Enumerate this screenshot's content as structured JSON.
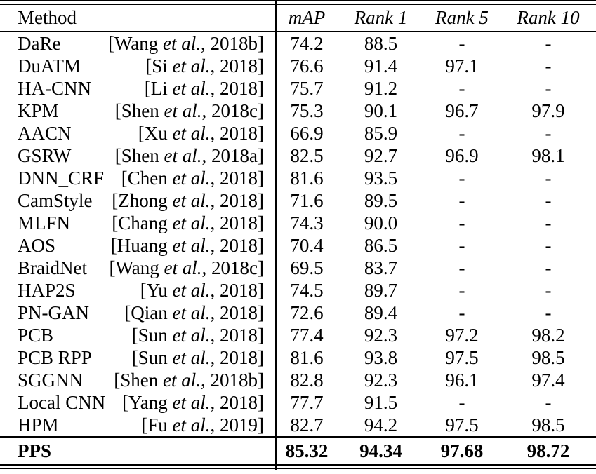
{
  "colors": {
    "text": "#000000",
    "background": "#ffffff",
    "rule": "#000000"
  },
  "table": {
    "header": {
      "method_label": "Method",
      "columns": [
        "mAP",
        "Rank 1",
        "Rank 5",
        "Rank 10"
      ]
    },
    "rows": [
      {
        "method": "DaRe",
        "cite": "[Wang et al., 2018b]",
        "map": "74.2",
        "rank1": "88.5",
        "rank5": "-",
        "rank10": "-"
      },
      {
        "method": "DuATM",
        "cite": "[Si et al., 2018]",
        "map": "76.6",
        "rank1": "91.4",
        "rank5": "97.1",
        "rank10": "-"
      },
      {
        "method": "HA-CNN",
        "cite": "[Li et al., 2018]",
        "map": "75.7",
        "rank1": "91.2",
        "rank5": "-",
        "rank10": "-"
      },
      {
        "method": "KPM",
        "cite": "[Shen et al., 2018c]",
        "map": "75.3",
        "rank1": "90.1",
        "rank5": "96.7",
        "rank10": "97.9"
      },
      {
        "method": "AACN",
        "cite": "[Xu et al., 2018]",
        "map": "66.9",
        "rank1": "85.9",
        "rank5": "-",
        "rank10": "-"
      },
      {
        "method": "GSRW",
        "cite": "[Shen et al., 2018a]",
        "map": "82.5",
        "rank1": "92.7",
        "rank5": "96.9",
        "rank10": "98.1"
      },
      {
        "method": "DNN_CRF",
        "cite": "[Chen et al., 2018]",
        "map": "81.6",
        "rank1": "93.5",
        "rank5": "-",
        "rank10": "-"
      },
      {
        "method": "CamStyle",
        "cite": "[Zhong et al., 2018]",
        "map": "71.6",
        "rank1": "89.5",
        "rank5": "-",
        "rank10": "-"
      },
      {
        "method": "MLFN",
        "cite": "[Chang et al., 2018]",
        "map": "74.3",
        "rank1": "90.0",
        "rank5": "-",
        "rank10": "-"
      },
      {
        "method": "AOS",
        "cite": "[Huang et al., 2018]",
        "map": "70.4",
        "rank1": "86.5",
        "rank5": "-",
        "rank10": "-"
      },
      {
        "method": "BraidNet",
        "cite": "[Wang et al., 2018c]",
        "map": "69.5",
        "rank1": "83.7",
        "rank5": "-",
        "rank10": "-"
      },
      {
        "method": "HAP2S",
        "cite": "[Yu et al., 2018]",
        "map": "74.5",
        "rank1": "89.7",
        "rank5": "-",
        "rank10": "-"
      },
      {
        "method": "PN-GAN",
        "cite": "[Qian et al., 2018]",
        "map": "72.6",
        "rank1": "89.4",
        "rank5": "-",
        "rank10": "-"
      },
      {
        "method": "PCB",
        "cite": "[Sun et al., 2018]",
        "map": "77.4",
        "rank1": "92.3",
        "rank5": "97.2",
        "rank10": "98.2"
      },
      {
        "method": "PCB RPP",
        "cite": "[Sun et al., 2018]",
        "map": "81.6",
        "rank1": "93.8",
        "rank5": "97.5",
        "rank10": "98.5"
      },
      {
        "method": "SGGNN",
        "cite": "[Shen et al., 2018b]",
        "map": "82.8",
        "rank1": "92.3",
        "rank5": "96.1",
        "rank10": "97.4"
      },
      {
        "method": "Local CNN",
        "cite": "[Yang et al., 2018]",
        "map": "77.7",
        "rank1": "91.5",
        "rank5": "-",
        "rank10": "-"
      },
      {
        "method": "HPM",
        "cite": "[Fu et al., 2019]",
        "map": "82.7",
        "rank1": "94.2",
        "rank5": "97.5",
        "rank10": "98.5"
      }
    ],
    "summary": {
      "method": "PPS",
      "map": "85.32",
      "rank1": "94.34",
      "rank5": "97.68",
      "rank10": "98.72"
    }
  }
}
